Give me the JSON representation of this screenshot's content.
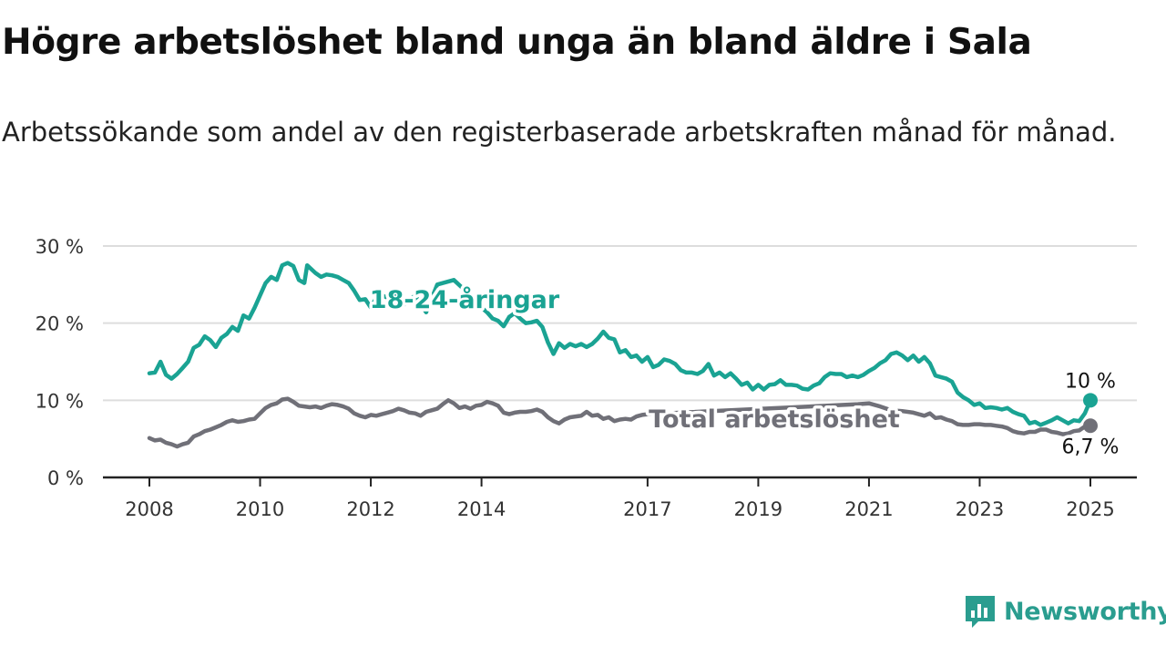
{
  "title": "Högre arbetslöshet bland unga än bland äldre i Sala",
  "subtitle": "Arbetssökande som andel av den registerbaserade arbetskraften månad för månad.",
  "brand": {
    "name": "Newsworthy",
    "icon": "newsworthy-logo-icon"
  },
  "colors": {
    "youth": "#1aa393",
    "total": "#707078",
    "grid": "#dddddd",
    "axis": "#222222"
  },
  "chart_data": {
    "type": "line",
    "title": "Högre arbetslöshet bland unga än bland äldre i Sala",
    "ylabel": "",
    "xlabel": "",
    "ylim": [
      0,
      30
    ],
    "xlim": [
      2007.8,
      2025.5
    ],
    "grid": true,
    "y_ticks": [
      {
        "value": 0,
        "label": "0 %"
      },
      {
        "value": 10,
        "label": "10 %"
      },
      {
        "value": 20,
        "label": "20 %"
      },
      {
        "value": 30,
        "label": "30 %"
      }
    ],
    "x_ticks": [
      {
        "value": 2008,
        "label": "2008"
      },
      {
        "value": 2010,
        "label": "2010"
      },
      {
        "value": 2012,
        "label": "2012"
      },
      {
        "value": 2014,
        "label": "2014"
      },
      {
        "value": 2017,
        "label": "2017"
      },
      {
        "value": 2019,
        "label": "2019"
      },
      {
        "value": 2021,
        "label": "2021"
      },
      {
        "value": 2023,
        "label": "2023"
      },
      {
        "value": 2025,
        "label": "2025"
      }
    ],
    "series": [
      {
        "name": "18-24-åringar",
        "label": "18-24-åringar",
        "color": "#1aa393",
        "end_label": "10 %",
        "points": [
          [
            2008.0,
            13.5
          ],
          [
            2008.1,
            13.6
          ],
          [
            2008.2,
            15.0
          ],
          [
            2008.3,
            13.3
          ],
          [
            2008.4,
            12.8
          ],
          [
            2008.5,
            13.4
          ],
          [
            2008.6,
            14.2
          ],
          [
            2008.7,
            15.0
          ],
          [
            2008.8,
            16.8
          ],
          [
            2008.9,
            17.2
          ],
          [
            2009.0,
            18.3
          ],
          [
            2009.1,
            17.8
          ],
          [
            2009.2,
            16.9
          ],
          [
            2009.3,
            18.1
          ],
          [
            2009.4,
            18.6
          ],
          [
            2009.5,
            19.5
          ],
          [
            2009.6,
            19.0
          ],
          [
            2009.7,
            21.0
          ],
          [
            2009.8,
            20.6
          ],
          [
            2009.9,
            22.0
          ],
          [
            2010.0,
            23.6
          ],
          [
            2010.1,
            25.2
          ],
          [
            2010.2,
            26.0
          ],
          [
            2010.3,
            25.6
          ],
          [
            2010.4,
            27.5
          ],
          [
            2010.5,
            27.8
          ],
          [
            2010.6,
            27.4
          ],
          [
            2010.7,
            25.6
          ],
          [
            2010.8,
            25.2
          ],
          [
            2010.85,
            27.5
          ],
          [
            2011.0,
            26.5
          ],
          [
            2011.1,
            26.0
          ],
          [
            2011.2,
            26.3
          ],
          [
            2011.3,
            26.2
          ],
          [
            2011.4,
            26.0
          ],
          [
            2011.5,
            25.6
          ],
          [
            2011.6,
            25.2
          ],
          [
            2011.7,
            24.2
          ],
          [
            2011.8,
            23.0
          ],
          [
            2011.9,
            23.1
          ],
          [
            2012.0,
            22.0
          ],
          [
            2012.1,
            23.3
          ],
          [
            2012.2,
            23.6
          ],
          [
            2012.3,
            23.3
          ],
          [
            2012.4,
            23.8
          ],
          [
            2012.5,
            23.2
          ],
          [
            2012.6,
            22.4
          ],
          [
            2012.8,
            23.6
          ],
          [
            2013.0,
            21.4
          ],
          [
            2013.2,
            25.0
          ],
          [
            2013.5,
            25.6
          ],
          [
            2013.8,
            23.6
          ],
          [
            2014.0,
            22.0
          ],
          [
            2014.1,
            21.4
          ],
          [
            2014.2,
            20.6
          ],
          [
            2014.3,
            20.3
          ],
          [
            2014.4,
            19.6
          ],
          [
            2014.5,
            20.8
          ],
          [
            2014.6,
            21.3
          ],
          [
            2014.7,
            20.6
          ],
          [
            2014.8,
            20.0
          ],
          [
            2014.9,
            20.1
          ],
          [
            2015.0,
            20.3
          ],
          [
            2015.1,
            19.5
          ],
          [
            2015.2,
            17.5
          ],
          [
            2015.3,
            16.0
          ],
          [
            2015.4,
            17.4
          ],
          [
            2015.5,
            16.8
          ],
          [
            2015.6,
            17.3
          ],
          [
            2015.7,
            17.0
          ],
          [
            2015.8,
            17.3
          ],
          [
            2015.9,
            16.9
          ],
          [
            2016.0,
            17.3
          ],
          [
            2016.1,
            18.0
          ],
          [
            2016.2,
            18.9
          ],
          [
            2016.3,
            18.1
          ],
          [
            2016.4,
            17.9
          ],
          [
            2016.5,
            16.2
          ],
          [
            2016.6,
            16.5
          ],
          [
            2016.7,
            15.6
          ],
          [
            2016.8,
            15.8
          ],
          [
            2016.9,
            15.0
          ],
          [
            2017.0,
            15.6
          ],
          [
            2017.1,
            14.3
          ],
          [
            2017.2,
            14.6
          ],
          [
            2017.3,
            15.3
          ],
          [
            2017.4,
            15.1
          ],
          [
            2017.5,
            14.7
          ],
          [
            2017.6,
            13.9
          ],
          [
            2017.7,
            13.6
          ],
          [
            2017.8,
            13.6
          ],
          [
            2017.9,
            13.4
          ],
          [
            2018.0,
            13.8
          ],
          [
            2018.1,
            14.7
          ],
          [
            2018.2,
            13.2
          ],
          [
            2018.3,
            13.6
          ],
          [
            2018.4,
            13.0
          ],
          [
            2018.5,
            13.5
          ],
          [
            2018.6,
            12.8
          ],
          [
            2018.7,
            12.0
          ],
          [
            2018.8,
            12.3
          ],
          [
            2018.9,
            11.4
          ],
          [
            2019.0,
            12.0
          ],
          [
            2019.1,
            11.4
          ],
          [
            2019.2,
            12.0
          ],
          [
            2019.3,
            12.1
          ],
          [
            2019.4,
            12.6
          ],
          [
            2019.5,
            12.0
          ],
          [
            2019.6,
            12.0
          ],
          [
            2019.7,
            11.9
          ],
          [
            2019.8,
            11.5
          ],
          [
            2019.9,
            11.4
          ],
          [
            2020.0,
            11.9
          ],
          [
            2020.1,
            12.2
          ],
          [
            2020.2,
            13.0
          ],
          [
            2020.3,
            13.5
          ],
          [
            2020.4,
            13.4
          ],
          [
            2020.5,
            13.4
          ],
          [
            2020.6,
            13.0
          ],
          [
            2020.7,
            13.2
          ],
          [
            2020.8,
            13.0
          ],
          [
            2020.9,
            13.3
          ],
          [
            2021.0,
            13.8
          ],
          [
            2021.1,
            14.2
          ],
          [
            2021.2,
            14.8
          ],
          [
            2021.3,
            15.2
          ],
          [
            2021.4,
            16.0
          ],
          [
            2021.5,
            16.2
          ],
          [
            2021.6,
            15.8
          ],
          [
            2021.7,
            15.2
          ],
          [
            2021.8,
            15.8
          ],
          [
            2021.9,
            15.0
          ],
          [
            2022.0,
            15.6
          ],
          [
            2022.1,
            14.8
          ],
          [
            2022.2,
            13.2
          ],
          [
            2022.3,
            13.0
          ],
          [
            2022.4,
            12.8
          ],
          [
            2022.5,
            12.4
          ],
          [
            2022.6,
            11.0
          ],
          [
            2022.7,
            10.4
          ],
          [
            2022.8,
            10.0
          ],
          [
            2022.9,
            9.4
          ],
          [
            2023.0,
            9.6
          ],
          [
            2023.1,
            9.0
          ],
          [
            2023.2,
            9.1
          ],
          [
            2023.3,
            9.0
          ],
          [
            2023.4,
            8.8
          ],
          [
            2023.5,
            9.0
          ],
          [
            2023.6,
            8.5
          ],
          [
            2023.7,
            8.2
          ],
          [
            2023.8,
            8.0
          ],
          [
            2023.9,
            7.0
          ],
          [
            2024.0,
            7.2
          ],
          [
            2024.1,
            6.8
          ],
          [
            2024.2,
            7.1
          ],
          [
            2024.3,
            7.4
          ],
          [
            2024.4,
            7.8
          ],
          [
            2024.5,
            7.4
          ],
          [
            2024.6,
            7.0
          ],
          [
            2024.7,
            7.4
          ],
          [
            2024.8,
            7.3
          ],
          [
            2024.9,
            8.3
          ],
          [
            2025.0,
            10.0
          ]
        ]
      },
      {
        "name": "Total arbetslöshet",
        "label": "Total arbetslöshet",
        "color": "#707078",
        "end_label": "6,7 %",
        "points": [
          [
            2008.0,
            5.1
          ],
          [
            2008.1,
            4.8
          ],
          [
            2008.2,
            4.9
          ],
          [
            2008.3,
            4.5
          ],
          [
            2008.4,
            4.3
          ],
          [
            2008.5,
            4.0
          ],
          [
            2008.6,
            4.3
          ],
          [
            2008.7,
            4.5
          ],
          [
            2008.8,
            5.3
          ],
          [
            2008.9,
            5.6
          ],
          [
            2009.0,
            6.0
          ],
          [
            2009.1,
            6.2
          ],
          [
            2009.2,
            6.5
          ],
          [
            2009.3,
            6.8
          ],
          [
            2009.4,
            7.2
          ],
          [
            2009.5,
            7.4
          ],
          [
            2009.6,
            7.2
          ],
          [
            2009.7,
            7.3
          ],
          [
            2009.8,
            7.5
          ],
          [
            2009.9,
            7.6
          ],
          [
            2010.0,
            8.3
          ],
          [
            2010.1,
            9.0
          ],
          [
            2010.2,
            9.4
          ],
          [
            2010.3,
            9.6
          ],
          [
            2010.4,
            10.1
          ],
          [
            2010.5,
            10.2
          ],
          [
            2010.6,
            9.8
          ],
          [
            2010.7,
            9.3
          ],
          [
            2010.8,
            9.2
          ],
          [
            2010.9,
            9.1
          ],
          [
            2011.0,
            9.2
          ],
          [
            2011.1,
            9.0
          ],
          [
            2011.2,
            9.3
          ],
          [
            2011.3,
            9.5
          ],
          [
            2011.4,
            9.4
          ],
          [
            2011.5,
            9.2
          ],
          [
            2011.6,
            8.9
          ],
          [
            2011.7,
            8.3
          ],
          [
            2011.8,
            8.0
          ],
          [
            2011.9,
            7.8
          ],
          [
            2012.0,
            8.1
          ],
          [
            2012.1,
            8.0
          ],
          [
            2012.2,
            8.2
          ],
          [
            2012.3,
            8.4
          ],
          [
            2012.4,
            8.6
          ],
          [
            2012.5,
            8.9
          ],
          [
            2012.6,
            8.7
          ],
          [
            2012.7,
            8.4
          ],
          [
            2012.8,
            8.3
          ],
          [
            2012.9,
            8.0
          ],
          [
            2013.0,
            8.5
          ],
          [
            2013.1,
            8.7
          ],
          [
            2013.2,
            8.9
          ],
          [
            2013.3,
            9.5
          ],
          [
            2013.4,
            10.0
          ],
          [
            2013.5,
            9.6
          ],
          [
            2013.6,
            9.0
          ],
          [
            2013.7,
            9.2
          ],
          [
            2013.8,
            8.9
          ],
          [
            2013.9,
            9.3
          ],
          [
            2014.0,
            9.4
          ],
          [
            2014.1,
            9.8
          ],
          [
            2014.2,
            9.6
          ],
          [
            2014.3,
            9.3
          ],
          [
            2014.4,
            8.4
          ],
          [
            2014.5,
            8.2
          ],
          [
            2014.6,
            8.4
          ],
          [
            2014.7,
            8.5
          ],
          [
            2014.8,
            8.5
          ],
          [
            2014.9,
            8.6
          ],
          [
            2015.0,
            8.8
          ],
          [
            2015.1,
            8.5
          ],
          [
            2015.2,
            7.8
          ],
          [
            2015.3,
            7.3
          ],
          [
            2015.4,
            7.0
          ],
          [
            2015.5,
            7.5
          ],
          [
            2015.6,
            7.8
          ],
          [
            2015.7,
            7.9
          ],
          [
            2015.8,
            8.0
          ],
          [
            2015.9,
            8.5
          ],
          [
            2016.0,
            8.0
          ],
          [
            2016.1,
            8.1
          ],
          [
            2016.2,
            7.6
          ],
          [
            2016.3,
            7.8
          ],
          [
            2016.4,
            7.3
          ],
          [
            2016.5,
            7.5
          ],
          [
            2016.6,
            7.6
          ],
          [
            2016.7,
            7.5
          ],
          [
            2016.8,
            7.9
          ],
          [
            2016.9,
            8.1
          ],
          [
            2017.0,
            8.2
          ],
          [
            2020.8,
            9.5
          ],
          [
            2021.0,
            9.6
          ],
          [
            2021.2,
            9.2
          ],
          [
            2021.4,
            8.7
          ],
          [
            2021.6,
            8.6
          ],
          [
            2021.8,
            8.4
          ],
          [
            2022.0,
            8.0
          ],
          [
            2022.1,
            8.3
          ],
          [
            2022.2,
            7.7
          ],
          [
            2022.3,
            7.8
          ],
          [
            2022.4,
            7.5
          ],
          [
            2022.5,
            7.3
          ],
          [
            2022.6,
            6.9
          ],
          [
            2022.7,
            6.8
          ],
          [
            2022.8,
            6.8
          ],
          [
            2022.9,
            6.9
          ],
          [
            2023.0,
            6.9
          ],
          [
            2023.1,
            6.8
          ],
          [
            2023.2,
            6.8
          ],
          [
            2023.3,
            6.7
          ],
          [
            2023.4,
            6.6
          ],
          [
            2023.5,
            6.4
          ],
          [
            2023.6,
            6.0
          ],
          [
            2023.7,
            5.8
          ],
          [
            2023.8,
            5.7
          ],
          [
            2023.9,
            5.9
          ],
          [
            2024.0,
            5.9
          ],
          [
            2024.1,
            6.2
          ],
          [
            2024.2,
            6.2
          ],
          [
            2024.3,
            5.9
          ],
          [
            2024.4,
            5.8
          ],
          [
            2024.5,
            5.6
          ],
          [
            2024.6,
            5.7
          ],
          [
            2024.7,
            6.0
          ],
          [
            2024.8,
            6.1
          ],
          [
            2024.9,
            6.6
          ],
          [
            2025.0,
            6.7
          ]
        ]
      }
    ]
  }
}
